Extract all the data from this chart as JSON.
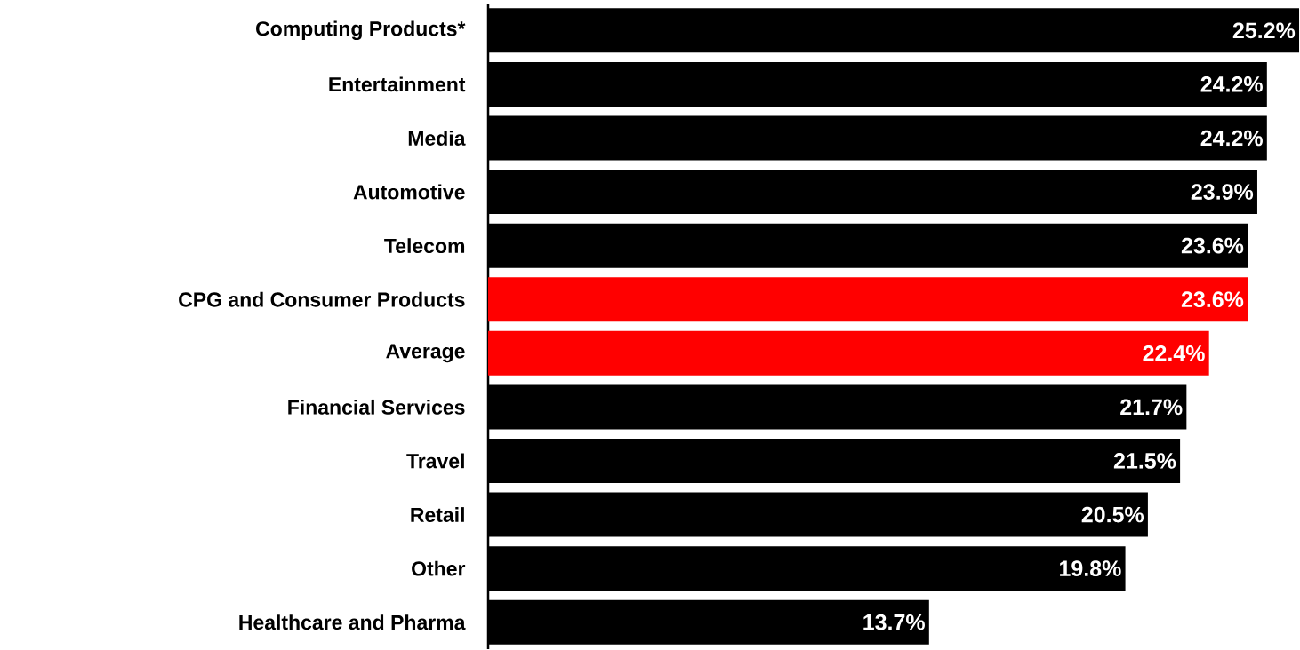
{
  "chart_data": {
    "type": "bar",
    "orientation": "horizontal",
    "categories": [
      "Computing Products*",
      "Entertainment",
      "Media",
      "Automotive",
      "Telecom",
      "CPG and Consumer Products",
      "Average",
      "Financial Services",
      "Travel",
      "Retail",
      "Other",
      "Healthcare and Pharma"
    ],
    "values": [
      25.2,
      24.2,
      24.2,
      23.9,
      23.6,
      23.6,
      22.4,
      21.7,
      21.5,
      20.5,
      19.8,
      13.7
    ],
    "colors": [
      "#000000",
      "#000000",
      "#000000",
      "#000000",
      "#000000",
      "#ff0000",
      "#ff0000",
      "#000000",
      "#000000",
      "#000000",
      "#000000",
      "#000000"
    ],
    "value_labels": [
      "25.2%",
      "24.2%",
      "24.2%",
      "23.9%",
      "23.6%",
      "23.6%",
      "22.4%",
      "21.7%",
      "21.5%",
      "20.5%",
      "19.8%",
      "13.7%"
    ],
    "tick_labels": "y"
  }
}
